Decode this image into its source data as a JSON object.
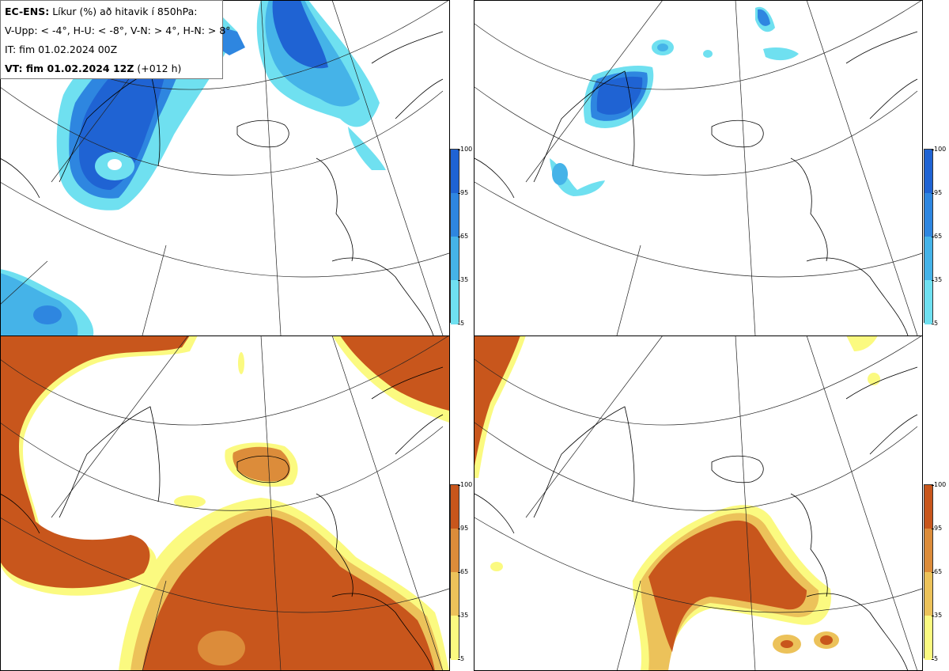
{
  "info": {
    "ens_label": "EC-ENS:",
    "title": "Líkur (%) að hitavik í 850hPa:",
    "thresholds": "V-Upp: < -4°, H-U: < -8°, V-N: > 4°, H-N: > 8°",
    "issue_time": "IT: fim 01.02.2024 00Z",
    "valid_label": "VT: fim 01.02.2024 12Z",
    "lead": "(+012 h)"
  },
  "panels": [
    {
      "key": "V-Upp",
      "description": "prob < -4°",
      "colorscale": "cold"
    },
    {
      "key": "H-U",
      "description": "prob < -8°",
      "colorscale": "cold"
    },
    {
      "key": "V-N",
      "description": "prob > 4°",
      "colorscale": "warm"
    },
    {
      "key": "H-N",
      "description": "prob > 8°",
      "colorscale": "warm"
    }
  ],
  "colorbar": {
    "ticks": [
      "100",
      "95",
      "65",
      "35",
      "5"
    ],
    "cold_colors": [
      "#1f63d3",
      "#2e86e0",
      "#45b3e8",
      "#6fe0f0"
    ],
    "warm_colors": [
      "#c8561c",
      "#dc8c3a",
      "#ecc25a",
      "#fbfa80"
    ]
  }
}
